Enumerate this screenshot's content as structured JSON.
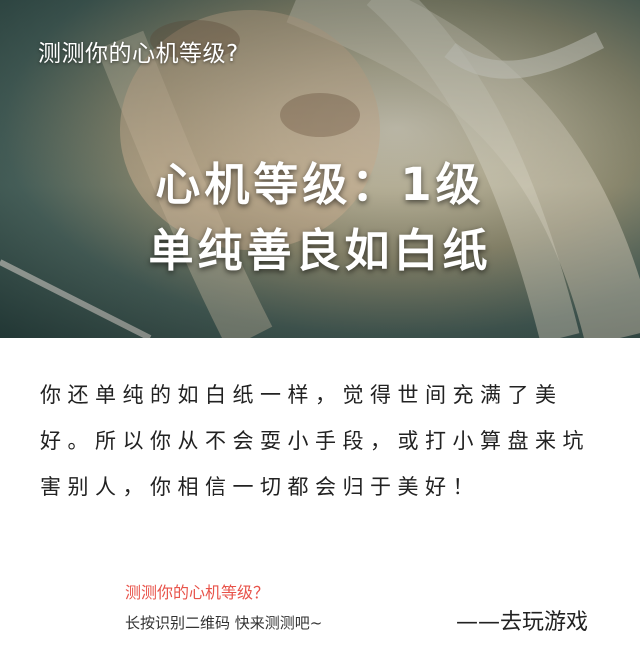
{
  "hero": {
    "question": "测测你的心机等级?",
    "level_title": "心机等级：1级",
    "result_label": "单纯善良如白纸"
  },
  "description": "你还单纯的如白纸一样，觉得世间充满了美好。所以你从不会耍小手段，或打小算盘来坑害别人，你相信一切都会归于美好！",
  "footer": {
    "question": "测测你的心机等级？",
    "hint": "长按识别二维码  快来测测吧~",
    "game_link": "——去玩游戏"
  },
  "colors": {
    "accent_red": "#e8534a",
    "hero_teal": "#2d4946"
  }
}
